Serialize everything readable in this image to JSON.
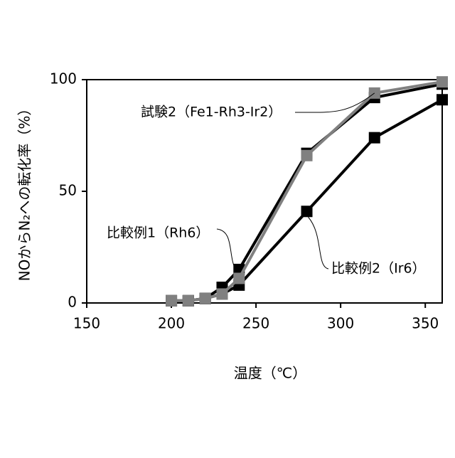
{
  "chart_data": {
    "type": "line",
    "x": [
      200,
      210,
      220,
      230,
      240,
      280,
      320,
      360
    ],
    "x_label": "温度（℃）",
    "y_label": "NOからN₂への転化率（%）",
    "xlim": [
      150,
      360
    ],
    "xticks": [
      150,
      200,
      250,
      300,
      350
    ],
    "ylim": [
      0,
      100
    ],
    "yticks": [
      0,
      50,
      100
    ],
    "series": [
      {
        "name": "比較例2（Ir6）",
        "color": "#000000",
        "values": [
          1,
          1,
          2,
          4,
          8,
          41,
          74,
          91
        ]
      },
      {
        "name": "比較例1（Rh6）",
        "color": "#000000",
        "values": [
          1,
          1,
          2,
          7,
          15,
          67,
          92,
          98
        ]
      },
      {
        "name": "試験2（Fe1-Rh3-Ir2）",
        "color": "#808080",
        "values": [
          1,
          1,
          2,
          4,
          11,
          66,
          94,
          99
        ]
      }
    ]
  }
}
